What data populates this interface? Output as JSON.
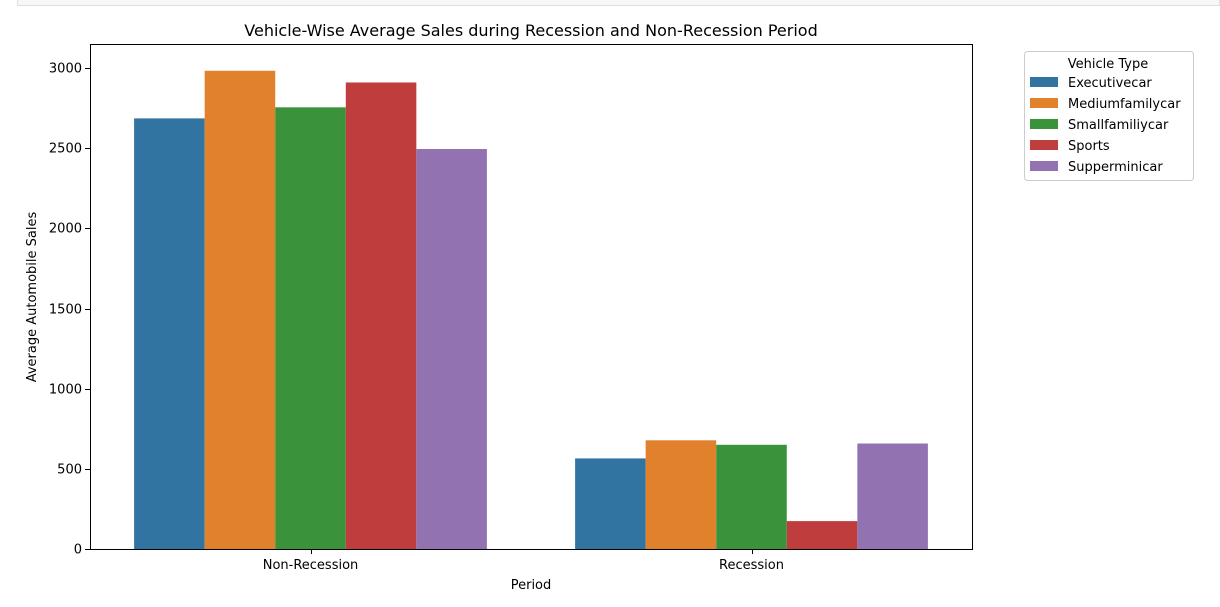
{
  "chart_data": {
    "type": "bar",
    "title": "Vehicle-Wise Average Sales during Recession and Non-Recession Period",
    "xlabel": "Period",
    "ylabel": "Average Automobile Sales",
    "categories": [
      "Non-Recession",
      "Recession"
    ],
    "ylim": [
      0,
      3150
    ],
    "yticks": [
      0,
      500,
      1000,
      1500,
      2000,
      2500,
      3000
    ],
    "grid": false,
    "legend": {
      "title": "Vehicle Type",
      "placement": "outside-top-right"
    },
    "series": [
      {
        "name": "Executivecar",
        "color": "#3274a1",
        "values": [
          2686,
          565
        ]
      },
      {
        "name": "Mediumfamilycar",
        "color": "#e1812c",
        "values": [
          2983,
          678
        ]
      },
      {
        "name": "Smallfamiliycar",
        "color": "#3a923a",
        "values": [
          2755,
          650
        ]
      },
      {
        "name": "Sports",
        "color": "#c03d3e",
        "values": [
          2910,
          174
        ]
      },
      {
        "name": "Supperminicar",
        "color": "#9372b2",
        "values": [
          2495,
          658
        ]
      }
    ]
  }
}
